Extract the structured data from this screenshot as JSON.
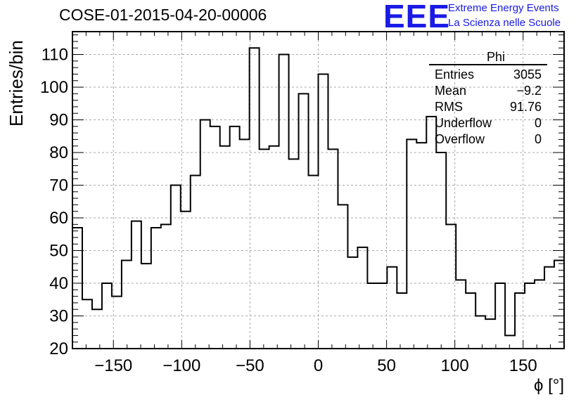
{
  "plot": {
    "title": "COSE-01-2015-04-20-00006"
  },
  "logo": {
    "mark": "EEE",
    "line1": "Extreme Energy Events",
    "line2": "La Scienza nelle Scuole",
    "color": "#1a1ae6"
  },
  "stats": {
    "title": "Phi",
    "rows": [
      {
        "label": "Entries",
        "value": "3055"
      },
      {
        "label": "Mean",
        "value": "−9.2"
      },
      {
        "label": "RMS",
        "value": "91.76"
      },
      {
        "label": "Underflow",
        "value": "0"
      },
      {
        "label": "Overflow",
        "value": "0"
      }
    ]
  },
  "chart_data": {
    "type": "bar",
    "style": "step-histogram",
    "xlabel": "ϕ [°]",
    "ylabel": "Entries/bin",
    "xlim": [
      -180,
      180
    ],
    "ylim": [
      20,
      117
    ],
    "bin_width": 7.2,
    "xticks": [
      -150,
      -100,
      -50,
      0,
      50,
      100,
      150
    ],
    "yticks": [
      20,
      30,
      40,
      50,
      60,
      70,
      80,
      90,
      100,
      110
    ],
    "grid": true,
    "values": [
      57,
      35,
      32,
      40,
      36,
      47,
      59,
      46,
      57,
      58,
      70,
      62,
      73,
      90,
      88,
      82,
      88,
      84,
      112,
      81,
      82,
      110,
      78,
      98,
      73,
      104,
      81,
      64,
      48,
      51,
      40,
      40,
      45,
      37,
      84,
      83,
      91,
      80,
      58,
      41,
      37,
      30,
      29,
      40,
      24,
      37,
      40,
      41,
      45,
      47
    ]
  }
}
